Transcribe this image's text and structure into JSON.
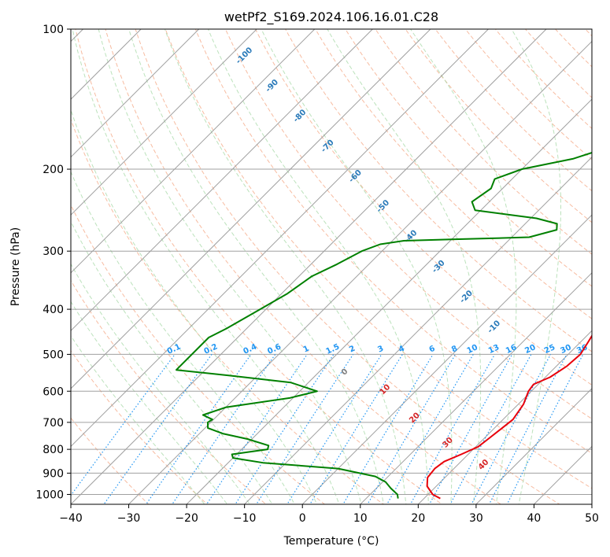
{
  "chart_data": {
    "type": "line",
    "subtype": "skew-t log-p diagram",
    "title": "wetPf2_S169.2024.106.16.01.C28",
    "xlabel": "Temperature (°C)",
    "ylabel": "Pressure (hPa)",
    "xlim": [
      -40,
      50
    ],
    "ylim": [
      1050,
      100
    ],
    "y_scale": "log",
    "x_ticks": [
      -40,
      -30,
      -20,
      -10,
      0,
      10,
      20,
      30,
      40,
      50
    ],
    "y_ticks": [
      1000,
      900,
      800,
      700,
      600,
      500,
      400,
      300,
      200,
      100
    ],
    "grid": true,
    "series": [
      {
        "role": "temperature",
        "color": "#e8000b",
        "points": [
          [
            1020,
            22.8
          ],
          [
            1000,
            20.8
          ],
          [
            960,
            18.4
          ],
          [
            920,
            17.0
          ],
          [
            880,
            16.7
          ],
          [
            850,
            17.1
          ],
          [
            820,
            18.8
          ],
          [
            790,
            20.4
          ],
          [
            760,
            20.8
          ],
          [
            730,
            21.2
          ],
          [
            690,
            21.7
          ],
          [
            640,
            20.9
          ],
          [
            600,
            19.5
          ],
          [
            580,
            19.2
          ],
          [
            560,
            20.8
          ],
          [
            530,
            21.8
          ],
          [
            500,
            22.1
          ],
          [
            470,
            21.3
          ],
          [
            440,
            20.4
          ],
          [
            400,
            17.3
          ],
          [
            360,
            14.3
          ],
          [
            330,
            11.5
          ],
          [
            300,
            8.9
          ],
          [
            280,
            7.2
          ],
          [
            255,
            5.8
          ],
          [
            230,
            5.0
          ],
          [
            200,
            3.2
          ],
          [
            180,
            2.2
          ],
          [
            165,
            1.9
          ],
          [
            150,
            2.8
          ],
          [
            135,
            3.1
          ],
          [
            120,
            3.0
          ],
          [
            110,
            3.4
          ],
          [
            100,
            3.6
          ]
        ]
      },
      {
        "role": "dewpoint",
        "color": "#008000",
        "points": [
          [
            1020,
            15.5
          ],
          [
            1000,
            14.7
          ],
          [
            970,
            12.5
          ],
          [
            940,
            10.5
          ],
          [
            915,
            7.8
          ],
          [
            880,
            0.0
          ],
          [
            855,
            -14.0
          ],
          [
            835,
            -20.0
          ],
          [
            820,
            -20.8
          ],
          [
            800,
            -15.5
          ],
          [
            785,
            -16.0
          ],
          [
            760,
            -20.8
          ],
          [
            740,
            -26.0
          ],
          [
            720,
            -29.5
          ],
          [
            700,
            -30.5
          ],
          [
            690,
            -30.2
          ],
          [
            675,
            -32.6
          ],
          [
            650,
            -30.0
          ],
          [
            620,
            -20.5
          ],
          [
            600,
            -17.0
          ],
          [
            575,
            -23.0
          ],
          [
            555,
            -35.0
          ],
          [
            540,
            -45.0
          ],
          [
            460,
            -45.0
          ],
          [
            440,
            -43.5
          ],
          [
            400,
            -41.0
          ],
          [
            370,
            -39.0
          ],
          [
            340,
            -37.8
          ],
          [
            320,
            -35.5
          ],
          [
            300,
            -33.5
          ],
          [
            290,
            -31.5
          ],
          [
            285,
            -28.0
          ],
          [
            283,
            -20.0
          ],
          [
            282,
            -15.0
          ],
          [
            280,
            -7.0
          ],
          [
            270,
            -3.5
          ],
          [
            262,
            -4.5
          ],
          [
            255,
            -9.0
          ],
          [
            250,
            -15.0
          ],
          [
            245,
            -21.0
          ],
          [
            235,
            -23.0
          ],
          [
            220,
            -22.0
          ],
          [
            210,
            -23.0
          ],
          [
            200,
            -20.0
          ],
          [
            190,
            -13.0
          ],
          [
            180,
            -9.0
          ],
          [
            170,
            -7.0
          ],
          [
            160,
            -7.0
          ],
          [
            150,
            -8.5
          ],
          [
            140,
            -10.0
          ],
          [
            130,
            -12.0
          ],
          [
            120,
            -13.0
          ],
          [
            110,
            -14.0
          ],
          [
            100,
            -15.0
          ]
        ]
      }
    ],
    "dry_adiabat_labels": [
      "-100",
      "-90",
      "-80",
      "-70",
      "-60",
      "-50",
      "-40",
      "-30",
      "-20",
      "-10",
      "0",
      "10",
      "20",
      "30",
      "40"
    ],
    "mixing_ratio_labels": [
      "0.1",
      "0.2",
      "0.4",
      "0.6",
      "1",
      "1.5",
      "2",
      "3",
      "4",
      "6",
      "8",
      "10",
      "13",
      "16",
      "20",
      "25",
      "30",
      "36"
    ],
    "colors": {
      "temperature": "#e8000b",
      "dewpoint": "#008000",
      "isotherm_grid": "#a0a0a0",
      "dry_adiabat": "#f4a582",
      "moist_adiabat": "#a6d8a6",
      "mixing_ratio": "#2196f3",
      "label_blue": "#2b7bba",
      "label_red": "#d62728",
      "label_gray": "#808080"
    }
  }
}
